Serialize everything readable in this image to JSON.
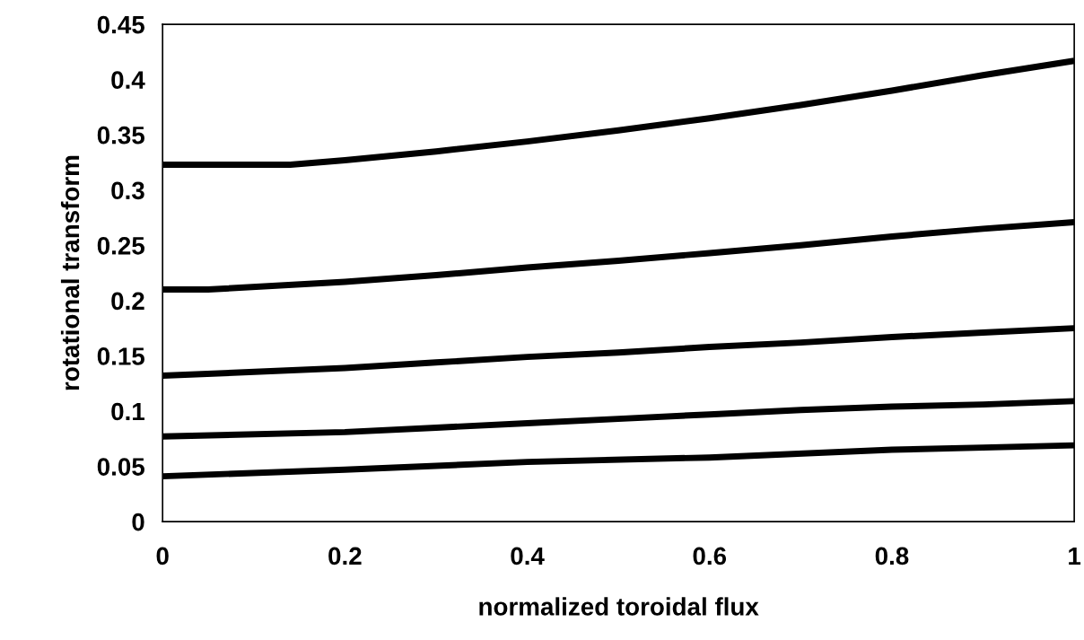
{
  "chart_data": {
    "type": "line",
    "xlabel": "normalized toroidal flux",
    "ylabel": "rotational transform",
    "xlim": [
      0,
      1
    ],
    "ylim": [
      0,
      0.45
    ],
    "xticks": [
      0,
      0.2,
      0.4,
      0.6,
      0.8,
      1
    ],
    "yticks": [
      0,
      0.05,
      0.1,
      0.15,
      0.2,
      0.25,
      0.3,
      0.35,
      0.4,
      0.45
    ],
    "grid": false,
    "marker": "none",
    "line_style": "solid",
    "series": [
      {
        "color": "#000000",
        "x": [
          0,
          0.1,
          0.14,
          0.2,
          0.3,
          0.4,
          0.5,
          0.6,
          0.7,
          0.8,
          0.9,
          1.0
        ],
        "values": [
          0.323,
          0.323,
          0.323,
          0.327,
          0.335,
          0.344,
          0.354,
          0.365,
          0.377,
          0.39,
          0.404,
          0.417
        ]
      },
      {
        "color": "#000000",
        "x": [
          0,
          0.05,
          0.2,
          0.3,
          0.4,
          0.5,
          0.6,
          0.7,
          0.8,
          0.9,
          1.0
        ],
        "values": [
          0.21,
          0.21,
          0.217,
          0.223,
          0.23,
          0.236,
          0.243,
          0.25,
          0.258,
          0.265,
          0.271
        ]
      },
      {
        "color": "#000000",
        "x": [
          0,
          0.2,
          0.3,
          0.4,
          0.5,
          0.6,
          0.7,
          0.8,
          0.9,
          1.0
        ],
        "values": [
          0.132,
          0.139,
          0.144,
          0.149,
          0.153,
          0.158,
          0.162,
          0.167,
          0.171,
          0.175
        ]
      },
      {
        "color": "#000000",
        "x": [
          0,
          0.2,
          0.3,
          0.4,
          0.5,
          0.6,
          0.7,
          0.8,
          0.9,
          1.0
        ],
        "values": [
          0.077,
          0.081,
          0.085,
          0.089,
          0.093,
          0.097,
          0.101,
          0.104,
          0.106,
          0.109
        ]
      },
      {
        "color": "#000000",
        "x": [
          0,
          0.2,
          0.4,
          0.6,
          0.8,
          0.9,
          1.0
        ],
        "values": [
          0.041,
          0.047,
          0.054,
          0.058,
          0.065,
          0.067,
          0.069
        ]
      }
    ]
  }
}
